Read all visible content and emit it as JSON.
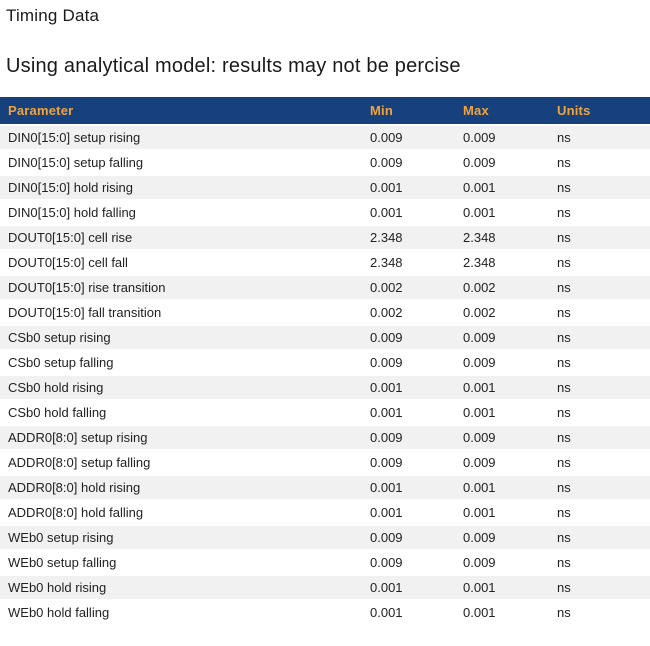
{
  "page": {
    "title": "Timing Data",
    "subtitle": "Using analytical model: results may not be percise"
  },
  "colors": {
    "header_bg": "#17417d",
    "header_text": "#f0a33c",
    "row_alt_bg": "#f1f1f1",
    "body_text": "#222222"
  },
  "table": {
    "columns": [
      "Parameter",
      "Min",
      "Max",
      "Units"
    ],
    "rows": [
      {
        "parameter": "DIN0[15:0] setup rising",
        "min": "0.009",
        "max": "0.009",
        "units": "ns"
      },
      {
        "parameter": "DIN0[15:0] setup falling",
        "min": "0.009",
        "max": "0.009",
        "units": "ns"
      },
      {
        "parameter": "DIN0[15:0] hold rising",
        "min": "0.001",
        "max": "0.001",
        "units": "ns"
      },
      {
        "parameter": "DIN0[15:0] hold falling",
        "min": "0.001",
        "max": "0.001",
        "units": "ns"
      },
      {
        "parameter": "DOUT0[15:0] cell rise",
        "min": "2.348",
        "max": "2.348",
        "units": "ns"
      },
      {
        "parameter": "DOUT0[15:0] cell fall",
        "min": "2.348",
        "max": "2.348",
        "units": "ns"
      },
      {
        "parameter": "DOUT0[15:0] rise transition",
        "min": "0.002",
        "max": "0.002",
        "units": "ns"
      },
      {
        "parameter": "DOUT0[15:0] fall transition",
        "min": "0.002",
        "max": "0.002",
        "units": "ns"
      },
      {
        "parameter": "CSb0 setup rising",
        "min": "0.009",
        "max": "0.009",
        "units": "ns"
      },
      {
        "parameter": "CSb0 setup falling",
        "min": "0.009",
        "max": "0.009",
        "units": "ns"
      },
      {
        "parameter": "CSb0 hold rising",
        "min": "0.001",
        "max": "0.001",
        "units": "ns"
      },
      {
        "parameter": "CSb0 hold falling",
        "min": "0.001",
        "max": "0.001",
        "units": "ns"
      },
      {
        "parameter": "ADDR0[8:0] setup rising",
        "min": "0.009",
        "max": "0.009",
        "units": "ns"
      },
      {
        "parameter": "ADDR0[8:0] setup falling",
        "min": "0.009",
        "max": "0.009",
        "units": "ns"
      },
      {
        "parameter": "ADDR0[8:0] hold rising",
        "min": "0.001",
        "max": "0.001",
        "units": "ns"
      },
      {
        "parameter": "ADDR0[8:0] hold falling",
        "min": "0.001",
        "max": "0.001",
        "units": "ns"
      },
      {
        "parameter": "WEb0 setup rising",
        "min": "0.009",
        "max": "0.009",
        "units": "ns"
      },
      {
        "parameter": "WEb0 setup falling",
        "min": "0.009",
        "max": "0.009",
        "units": "ns"
      },
      {
        "parameter": "WEb0 hold rising",
        "min": "0.001",
        "max": "0.001",
        "units": "ns"
      },
      {
        "parameter": "WEb0 hold falling",
        "min": "0.001",
        "max": "0.001",
        "units": "ns"
      }
    ]
  }
}
